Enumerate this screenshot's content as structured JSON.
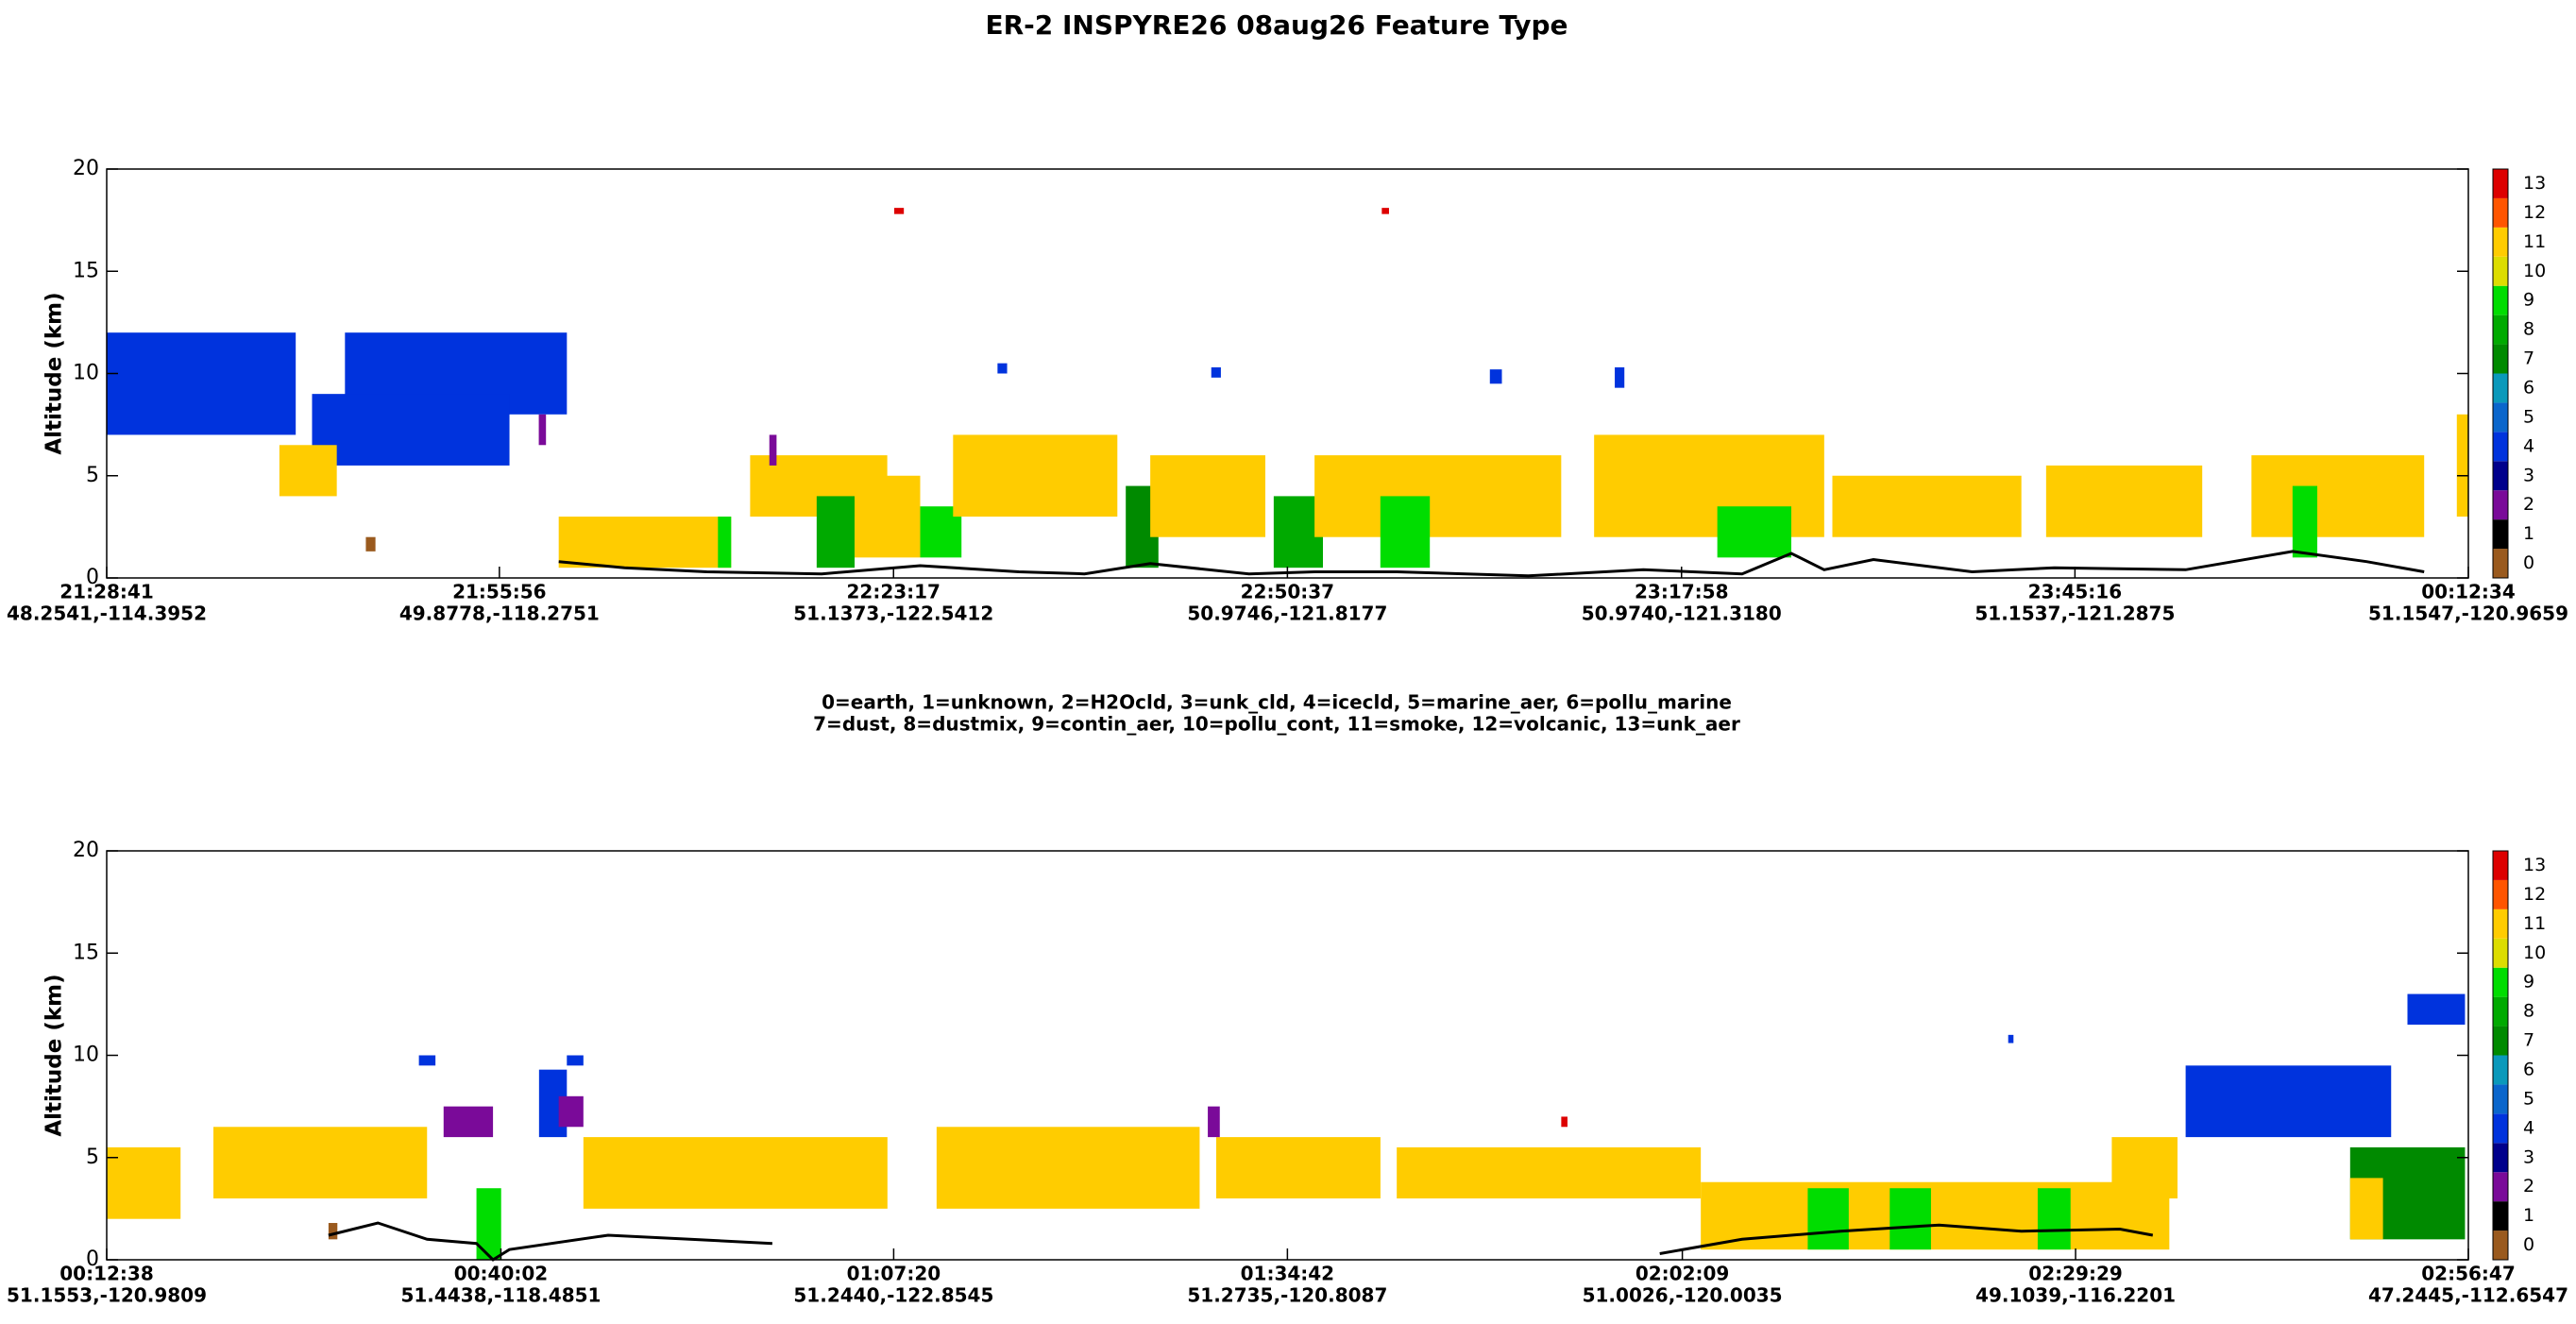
{
  "title": "ER-2  INSPYRE26  08aug26  Feature Type",
  "legend_text": [
    "0=earth, 1=unknown, 2=H2Ocld, 3=unk_cld, 4=icecld, 5=marine_aer, 6=pollu_marine",
    "7=dust, 8=dustmix, 9=contin_aer, 10=pollu_cont, 11=smoke, 12=volcanic, 13=unk_aer"
  ],
  "chart_data": [
    {
      "type": "curtain",
      "ylabel": "Altitude (km)",
      "ylim": [
        0,
        20
      ],
      "yticks": [
        0,
        5,
        10,
        15,
        20
      ],
      "xlim": [
        77321,
        87154
      ],
      "xticks": [
        {
          "value": 77321,
          "label": "21:28:41"
        },
        {
          "value": 78956,
          "label": "21:55:56"
        },
        {
          "value": 80597,
          "label": "22:23:17"
        },
        {
          "value": 82237,
          "label": "22:50:37"
        },
        {
          "value": 83878,
          "label": "23:17:58"
        },
        {
          "value": 85516,
          "label": "23:45:16"
        },
        {
          "value": 87154,
          "label": "00:12:34"
        }
      ],
      "xtick_positions": [
        "48.2541,-114.3952",
        "49.8778,-118.2751",
        "51.1373,-122.5412",
        "50.9746,-121.8177",
        "50.9740,-121.3180",
        "51.1537,-121.2875",
        "51.1547,-120.9659"
      ],
      "colorbar": {
        "ticks": [
          0,
          1,
          2,
          3,
          4,
          5,
          6,
          7,
          8,
          9,
          10,
          11,
          12,
          13
        ],
        "colors": [
          "#9a5a1e",
          "#000000",
          "#7a0a99",
          "#00008c",
          "#0033dd",
          "#0a66cc",
          "#0a99bb",
          "#008a00",
          "#00aa00",
          "#00dd00",
          "#dddd00",
          "#ffcc00",
          "#ff5500",
          "#dd0000"
        ]
      },
      "features": [
        {
          "time": [
            77321,
            78108
          ],
          "alt": [
            7,
            12
          ],
          "class": 4
        },
        {
          "time": [
            78313,
            79237
          ],
          "alt": [
            8,
            12
          ],
          "class": 4
        },
        {
          "time": [
            78176,
            78998
          ],
          "alt": [
            5.5,
            9
          ],
          "class": 4
        },
        {
          "time": [
            78040,
            78279
          ],
          "alt": [
            4,
            6.5
          ],
          "class": 11
        },
        {
          "time": [
            79203,
            79921
          ],
          "alt": [
            0.5,
            3
          ],
          "class": 11
        },
        {
          "time": [
            79866,
            79921
          ],
          "alt": [
            0.5,
            3
          ],
          "class": 9
        },
        {
          "time": [
            80000,
            80571
          ],
          "alt": [
            3,
            6
          ],
          "class": 11
        },
        {
          "time": [
            80277,
            80435
          ],
          "alt": [
            0.5,
            4
          ],
          "class": 8
        },
        {
          "time": [
            80435,
            80708
          ],
          "alt": [
            1,
            5
          ],
          "class": 11
        },
        {
          "time": [
            80708,
            80880
          ],
          "alt": [
            1,
            3.5
          ],
          "class": 9
        },
        {
          "time": [
            80845,
            81529
          ],
          "alt": [
            3,
            7
          ],
          "class": 11
        },
        {
          "time": [
            81564,
            81700
          ],
          "alt": [
            0.5,
            4.5
          ],
          "class": 7
        },
        {
          "time": [
            81666,
            82145
          ],
          "alt": [
            2,
            6
          ],
          "class": 11
        },
        {
          "time": [
            82180,
            82385
          ],
          "alt": [
            0.5,
            4
          ],
          "class": 8
        },
        {
          "time": [
            82350,
            83377
          ],
          "alt": [
            2,
            6
          ],
          "class": 11
        },
        {
          "time": [
            82624,
            82830
          ],
          "alt": [
            0.5,
            4
          ],
          "class": 9
        },
        {
          "time": [
            83514,
            84472
          ],
          "alt": [
            2,
            7
          ],
          "class": 11
        },
        {
          "time": [
            84027,
            84335
          ],
          "alt": [
            1,
            3.5
          ],
          "class": 9
        },
        {
          "time": [
            84506,
            85293
          ],
          "alt": [
            2,
            5
          ],
          "class": 11
        },
        {
          "time": [
            85396,
            86046
          ],
          "alt": [
            2,
            5.5
          ],
          "class": 11
        },
        {
          "time": [
            86251,
            86970
          ],
          "alt": [
            2,
            6
          ],
          "class": 11
        },
        {
          "time": [
            86422,
            86525
          ],
          "alt": [
            1,
            4.5
          ],
          "class": 9
        },
        {
          "time": [
            87106,
            87154
          ],
          "alt": [
            3,
            8
          ],
          "class": 11
        },
        {
          "time": [
            81030,
            81070
          ],
          "alt": [
            10,
            10.5
          ],
          "class": 4
        },
        {
          "time": [
            81920,
            81960
          ],
          "alt": [
            9.8,
            10.3
          ],
          "class": 4
        },
        {
          "time": [
            83080,
            83130
          ],
          "alt": [
            9.5,
            10.2
          ],
          "class": 4
        },
        {
          "time": [
            83600,
            83640
          ],
          "alt": [
            9.3,
            10.3
          ],
          "class": 4
        },
        {
          "time": [
            80600,
            80640
          ],
          "alt": [
            17.8,
            18.1
          ],
          "class": 13
        },
        {
          "time": [
            82630,
            82660
          ],
          "alt": [
            17.8,
            18.1
          ],
          "class": 13
        },
        {
          "time": [
            78400,
            78440
          ],
          "alt": [
            1.3,
            2
          ],
          "class": 0
        },
        {
          "time": [
            80080,
            80110
          ],
          "alt": [
            5.5,
            7
          ],
          "class": 2
        },
        {
          "time": [
            79120,
            79150
          ],
          "alt": [
            6.5,
            8
          ],
          "class": 2
        }
      ],
      "surface": {
        "time": [
          79203,
          79477,
          79819,
          80298,
          80708,
          81119,
          81392,
          81666,
          82077,
          82351,
          82693,
          83240,
          83719,
          84130,
          84335,
          84472,
          84677,
          85088,
          85430,
          85977,
          86422,
          86730,
          86970
        ],
        "alt": [
          0.8,
          0.5,
          0.3,
          0.2,
          0.6,
          0.3,
          0.2,
          0.7,
          0.2,
          0.3,
          0.3,
          0.1,
          0.4,
          0.2,
          1.2,
          0.4,
          0.9,
          0.3,
          0.5,
          0.4,
          1.3,
          0.8,
          0.3
        ]
      }
    },
    {
      "type": "curtain",
      "ylabel": "Altitude (km)",
      "ylim": [
        0,
        20
      ],
      "yticks": [
        0,
        5,
        10,
        15,
        20
      ],
      "xlim": [
        758,
        10607
      ],
      "xticks": [
        {
          "value": 758,
          "label": "00:12:38"
        },
        {
          "value": 2402,
          "label": "00:40:02"
        },
        {
          "value": 4040,
          "label": "01:07:20"
        },
        {
          "value": 5682,
          "label": "01:34:42"
        },
        {
          "value": 7329,
          "label": "02:02:09"
        },
        {
          "value": 8969,
          "label": "02:29:29"
        },
        {
          "value": 10607,
          "label": "02:56:47"
        }
      ],
      "xtick_positions": [
        "51.1553,-120.9809",
        "51.4438,-118.4851",
        "51.2440,-122.8545",
        "51.2735,-120.8087",
        "51.0026,-120.0035",
        "49.1039,-116.2201",
        "47.2445,-112.6547"
      ],
      "colorbar": {
        "ticks": [
          0,
          1,
          2,
          3,
          4,
          5,
          6,
          7,
          8,
          9,
          10,
          11,
          12,
          13
        ],
        "colors": [
          "#9a5a1e",
          "#000000",
          "#7a0a99",
          "#00008c",
          "#0033dd",
          "#0a66cc",
          "#0a99bb",
          "#008a00",
          "#00aa00",
          "#00dd00",
          "#dddd00",
          "#ffcc00",
          "#ff5500",
          "#dd0000"
        ]
      },
      "features": [
        {
          "time": [
            758,
            1066
          ],
          "alt": [
            2,
            5.5
          ],
          "class": 11
        },
        {
          "time": [
            1203,
            2094
          ],
          "alt": [
            3,
            6.5
          ],
          "class": 11
        },
        {
          "time": [
            2163,
            2369
          ],
          "alt": [
            6,
            7.5
          ],
          "class": 2
        },
        {
          "time": [
            2300,
            2403
          ],
          "alt": [
            0,
            3.5
          ],
          "class": 9
        },
        {
          "time": [
            2060,
            2129
          ],
          "alt": [
            9.5,
            10
          ],
          "class": 4
        },
        {
          "time": [
            2561,
            2677
          ],
          "alt": [
            6,
            9.3
          ],
          "class": 4
        },
        {
          "time": [
            2677,
            2746
          ],
          "alt": [
            9.5,
            10
          ],
          "class": 4
        },
        {
          "time": [
            2643,
            2746
          ],
          "alt": [
            6.5,
            8
          ],
          "class": 2
        },
        {
          "time": [
            2746,
            4014
          ],
          "alt": [
            2.5,
            6
          ],
          "class": 11
        },
        {
          "time": [
            4219,
            5316
          ],
          "alt": [
            2.5,
            6.5
          ],
          "class": 11
        },
        {
          "time": [
            5385,
            6070
          ],
          "alt": [
            3,
            6
          ],
          "class": 11
        },
        {
          "time": [
            5350,
            5400
          ],
          "alt": [
            6,
            7.5
          ],
          "class": 2
        },
        {
          "time": [
            6138,
            7406
          ],
          "alt": [
            3,
            5.5
          ],
          "class": 11
        },
        {
          "time": [
            7406,
            9360
          ],
          "alt": [
            0.5,
            3.8
          ],
          "class": 11
        },
        {
          "time": [
            7852,
            8023
          ],
          "alt": [
            0.5,
            3.5
          ],
          "class": 9
        },
        {
          "time": [
            8194,
            8366
          ],
          "alt": [
            0.5,
            3.5
          ],
          "class": 9
        },
        {
          "time": [
            8811,
            8948
          ],
          "alt": [
            0.5,
            3.5
          ],
          "class": 9
        },
        {
          "time": [
            9120,
            9394
          ],
          "alt": [
            3,
            6
          ],
          "class": 11
        },
        {
          "time": [
            9428,
            10285
          ],
          "alt": [
            6,
            9.5
          ],
          "class": 4
        },
        {
          "time": [
            10353,
            10593
          ],
          "alt": [
            11.5,
            13
          ],
          "class": 4
        },
        {
          "time": [
            10114,
            10593
          ],
          "alt": [
            1,
            5.5
          ],
          "class": 7
        },
        {
          "time": [
            10114,
            10251
          ],
          "alt": [
            1,
            4
          ],
          "class": 11
        },
        {
          "time": [
            8688,
            8710
          ],
          "alt": [
            10.6,
            11
          ],
          "class": 4
        },
        {
          "time": [
            6824,
            6850
          ],
          "alt": [
            6.5,
            7
          ],
          "class": 13
        },
        {
          "time": [
            1683,
            1720
          ],
          "alt": [
            1,
            1.8
          ],
          "class": 0
        }
      ],
      "surface": {
        "time": [
          1683,
          1889,
          2094,
          2300,
          2369,
          2437,
          2849,
          3191,
          3534,
          null,
          7235,
          7578,
          7989,
          8400,
          8743,
          9154,
          9291
        ],
        "alt": [
          1.2,
          1.8,
          1.0,
          0.8,
          0,
          0.5,
          1.2,
          1.0,
          0.8,
          null,
          0.3,
          1.0,
          1.4,
          1.7,
          1.4,
          1.5,
          1.2
        ]
      }
    }
  ]
}
